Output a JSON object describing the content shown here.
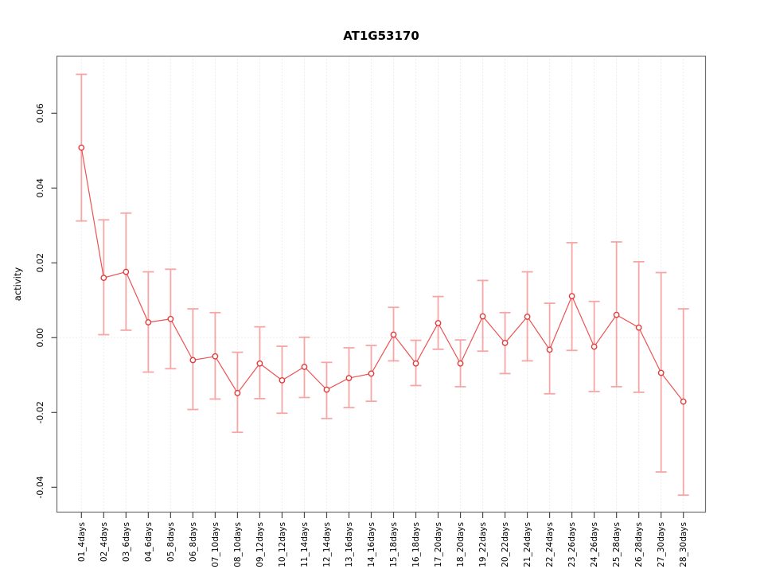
{
  "chart_data": {
    "type": "line",
    "title": "AT1G53170",
    "xlabel": "",
    "ylabel": "activity",
    "legend": "none",
    "grid": "dotted vertical gridline per category, dotted horizontal line at y=0",
    "marker": "open-circle",
    "error_bars": true,
    "ylim": [
      -0.0465,
      0.0753
    ],
    "y_ticks": [
      -0.04,
      -0.02,
      0.0,
      0.02,
      0.04,
      0.06
    ],
    "y_tick_labels": [
      "-0.04",
      "-0.02",
      "0.00",
      "0.02",
      "0.04",
      "0.06"
    ],
    "categories": [
      "01_4days",
      "02_4days",
      "03_6days",
      "04_6days",
      "05_8days",
      "06_8days",
      "07_10days",
      "08_10days",
      "09_12days",
      "10_12days",
      "11_14days",
      "12_14days",
      "13_16days",
      "14_16days",
      "15_18days",
      "16_18days",
      "17_20days",
      "18_20days",
      "19_22days",
      "20_22days",
      "21_24days",
      "22_24days",
      "23_26days",
      "24_26days",
      "25_28days",
      "26_28days",
      "27_30days",
      "28_30days"
    ],
    "series": [
      {
        "name": "activity",
        "values": [
          0.0508,
          0.016,
          0.0176,
          0.0041,
          0.005,
          -0.006,
          -0.005,
          -0.0148,
          -0.0069,
          -0.0114,
          -0.0078,
          -0.0139,
          -0.0108,
          -0.0096,
          0.0008,
          -0.0069,
          0.0039,
          -0.0069,
          0.0057,
          -0.0014,
          0.0056,
          -0.0032,
          0.0111,
          -0.0024,
          0.0061,
          0.0027,
          -0.0094,
          -0.0171
        ],
        "lower": [
          0.0312,
          0.0008,
          0.002,
          -0.0092,
          -0.0083,
          -0.0192,
          -0.0164,
          -0.0253,
          -0.0163,
          -0.0202,
          -0.016,
          -0.0216,
          -0.0187,
          -0.017,
          -0.0062,
          -0.0128,
          -0.0031,
          -0.0131,
          -0.0036,
          -0.0096,
          -0.0062,
          -0.015,
          -0.0034,
          -0.0144,
          -0.0131,
          -0.0146,
          -0.0359,
          -0.0421
        ],
        "upper": [
          0.0704,
          0.0315,
          0.0333,
          0.0176,
          0.0183,
          0.0077,
          0.0067,
          -0.0039,
          0.0029,
          -0.0023,
          0.0001,
          -0.0066,
          -0.0027,
          -0.0021,
          0.0081,
          -0.0007,
          0.011,
          -0.0006,
          0.0153,
          0.0067,
          0.0176,
          0.0092,
          0.0254,
          0.0097,
          0.0256,
          0.0203,
          0.0174,
          0.0077
        ]
      }
    ],
    "colors": {
      "point": "#e23b3b",
      "segment": "#ec5252",
      "error_bar": "#f6a6a6",
      "grid": "#dcdcdc",
      "zero_line": "#dcdcdc",
      "box": "#6e6e6e",
      "tick": "#4a4a4a",
      "text": "#000000"
    }
  }
}
